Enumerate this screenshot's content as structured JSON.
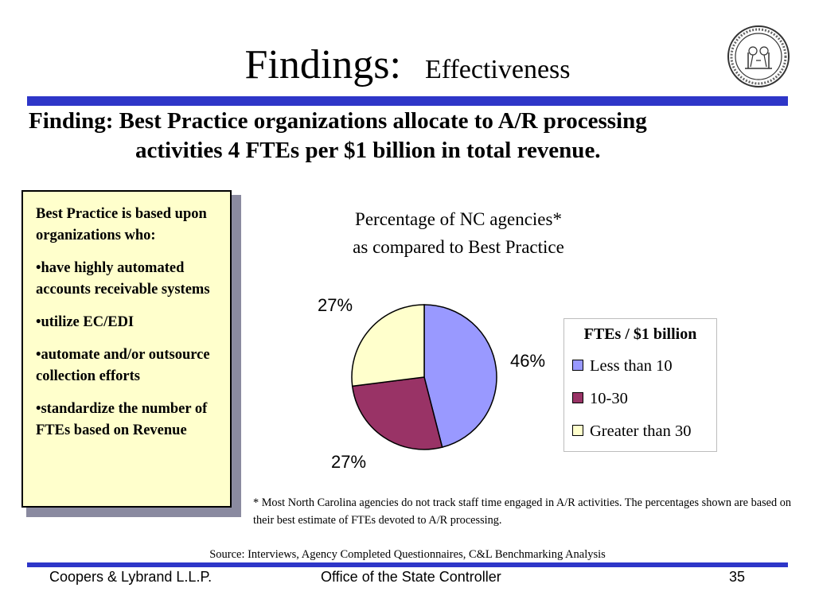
{
  "header": {
    "title_main": "Findings:",
    "title_sub": "Effectiveness",
    "finding_line1": "Finding: Best Practice organizations allocate to A/R processing",
    "finding_line2": "activities 4 FTEs per $1 billion in total revenue."
  },
  "sidebar": {
    "intro": "Best Practice is based upon organizations who:",
    "bullets": [
      "•have highly automated accounts receivable systems",
      "•utilize EC/EDI",
      "•automate and/or outsource collection efforts",
      "•standardize the number of FTEs based on Revenue"
    ]
  },
  "chart_data": {
    "type": "pie",
    "title_lines": [
      "Percentage of NC agencies*",
      "as compared to Best Practice"
    ],
    "legend_title": "FTEs / $1 billion",
    "legend_placement": "right",
    "slices": [
      {
        "label": "Less than 10",
        "value": 46,
        "value_label": "46%",
        "color": "#9999ff"
      },
      {
        "label": "10-30",
        "value": 27,
        "value_label": "27%",
        "color": "#993366"
      },
      {
        "label": "Greater than 30",
        "value": 27,
        "value_label": "27%",
        "color": "#ffffcc"
      }
    ]
  },
  "footnote": "* Most North Carolina agencies do not track staff time engaged in A/R activities.  The percentages shown are based on their best estimate of FTEs devoted to A/R processing.",
  "source": "Source: Interviews, Agency Completed Questionnaires, C&L Benchmarking Analysis",
  "footer": {
    "left": "Coopers & Lybrand L.L.P.",
    "center": "Office of the State Controller",
    "page": "35"
  },
  "colors": {
    "rule": "#2e36c8",
    "box_fill": "#ffffcc"
  },
  "icons": {
    "seal": "state-seal-icon"
  }
}
